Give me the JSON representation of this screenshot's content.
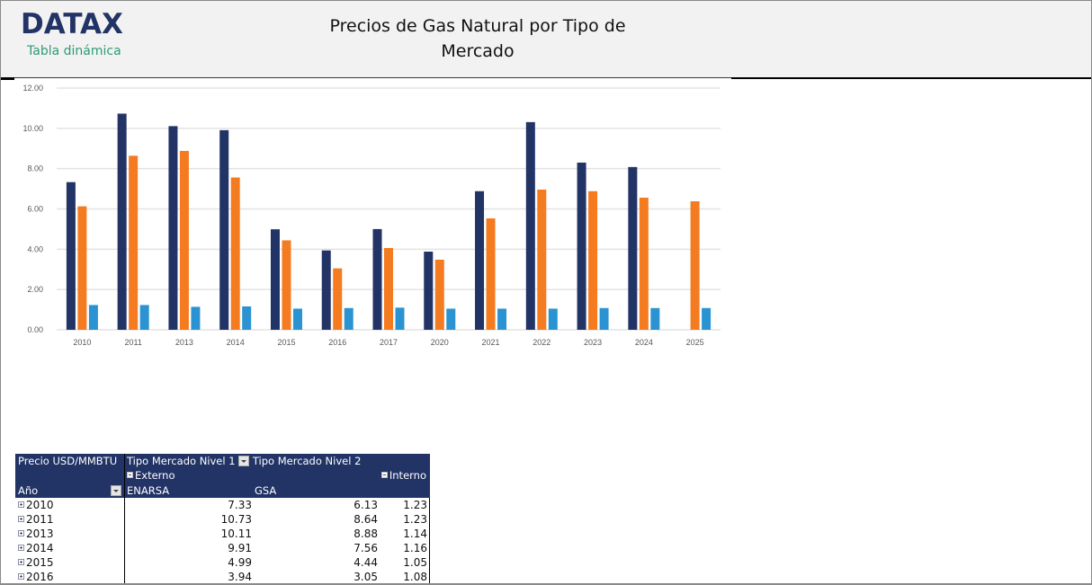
{
  "header": {
    "logo": "DATAX",
    "subtitle": "Tabla dinámica",
    "title_line1": "Precios de Gas Natural por Tipo de",
    "title_line2": "Mercado"
  },
  "colors": {
    "enarsa": "#223366",
    "gsa": "#f47b20",
    "interno": "#2b93d1",
    "header_bg": "#f2f2f2",
    "pivot_header_bg": "#223366",
    "logo": "#223366",
    "subtitle": "#2e9a78"
  },
  "chart_data": {
    "type": "bar",
    "title": "Precios de Gas Natural por Tipo de Mercado",
    "xlabel": "",
    "ylabel": "",
    "ylim": [
      0,
      12
    ],
    "yticks": [
      "0.00",
      "2.00",
      "4.00",
      "6.00",
      "8.00",
      "10.00",
      "12.00"
    ],
    "grid": true,
    "legend": "none",
    "categories": [
      "2010",
      "2011",
      "2013",
      "2014",
      "2015",
      "2016",
      "2017",
      "2020",
      "2021",
      "2022",
      "2023",
      "2024",
      "2025"
    ],
    "series": [
      {
        "name": "Externo - ENARSA",
        "color": "#223366",
        "values": [
          7.33,
          10.73,
          10.11,
          9.91,
          4.99,
          3.94,
          5.0,
          3.88,
          6.88,
          10.31,
          8.3,
          8.08,
          null
        ]
      },
      {
        "name": "Externo - GSA",
        "color": "#f47b20",
        "values": [
          6.13,
          8.64,
          8.88,
          7.56,
          4.44,
          3.05,
          4.06,
          3.48,
          5.53,
          6.96,
          6.88,
          6.56,
          6.38
        ]
      },
      {
        "name": "Interno",
        "color": "#2b93d1",
        "values": [
          1.23,
          1.23,
          1.14,
          1.16,
          1.05,
          1.08,
          1.1,
          1.05,
          1.05,
          1.05,
          1.08,
          1.08,
          1.08
        ]
      }
    ]
  },
  "pivot": {
    "value_field": "Precio USD/MMBTU",
    "column_field_1": "Tipo Mercado Nivel 1",
    "column_field_2": "Tipo Mercado Nivel 2",
    "group_externo": "Externo",
    "group_interno": "Interno",
    "row_field": "Año",
    "sub_enarsa": "ENARSA",
    "sub_gsa": "GSA",
    "rows": [
      {
        "year": "2010",
        "enarsa": "7.33",
        "gsa": "6.13",
        "interno": "1.23"
      },
      {
        "year": "2011",
        "enarsa": "10.73",
        "gsa": "8.64",
        "interno": "1.23"
      },
      {
        "year": "2013",
        "enarsa": "10.11",
        "gsa": "8.88",
        "interno": "1.14"
      },
      {
        "year": "2014",
        "enarsa": "9.91",
        "gsa": "7.56",
        "interno": "1.16"
      },
      {
        "year": "2015",
        "enarsa": "4.99",
        "gsa": "4.44",
        "interno": "1.05"
      },
      {
        "year": "2016",
        "enarsa": "3.94",
        "gsa": "3.05",
        "interno": "1.08"
      }
    ]
  }
}
